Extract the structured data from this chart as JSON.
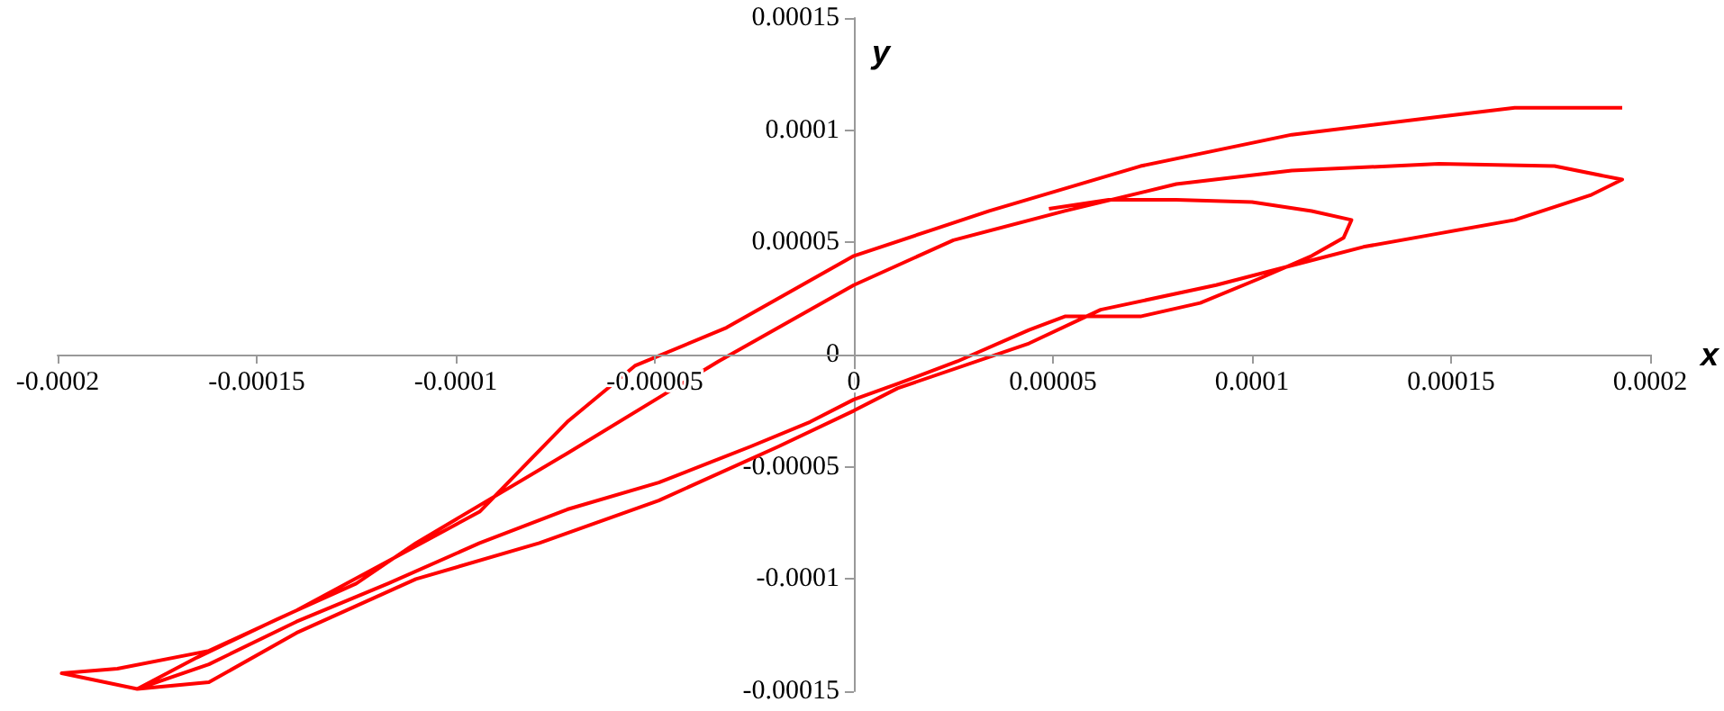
{
  "chart_data": {
    "type": "line",
    "xlabel": "x",
    "ylabel": "y",
    "xlim": [
      -0.0002,
      0.0002
    ],
    "ylim": [
      -0.00015,
      0.00015
    ],
    "xticks": [
      -0.0002,
      -0.00015,
      -0.0001,
      {
        "value": -5e-05,
        "label": "-0.00005"
      },
      0,
      {
        "value": 5e-05,
        "label": "0.00005"
      },
      0.0001,
      0.00015,
      0.0002
    ],
    "yticks": [
      -0.00015,
      -0.0001,
      {
        "value": -5e-05,
        "label": "-0.00005"
      },
      0,
      {
        "value": 5e-05,
        "label": "0.00005"
      },
      0.0001,
      0.00015
    ],
    "marker": "none",
    "line_style": "solid",
    "series": [
      {
        "color": "#ff0000",
        "x": [
          4.9e-05,
          6.4e-05,
          8.1e-05,
          0.0001,
          0.000115,
          0.000125,
          0.000123,
          0.000115,
          0.000102,
          8.7e-05,
          7.2e-05,
          5.3e-05,
          4.4e-05,
          2.6e-05,
          1.1e-05,
          0,
          -1.1e-05,
          -2.6e-05,
          -4.9e-05,
          -7.2e-05,
          -9.4e-05,
          -0.000117,
          -0.00014,
          -0.000162,
          -0.00018,
          -0.000165,
          -0.000145,
          -0.000125,
          -0.00011,
          -7.2e-05,
          -3.4e-05,
          0,
          2.5e-05,
          5.3e-05,
          8.1e-05,
          0.00011,
          0.000147,
          0.000176,
          0.000193,
          0.000185,
          0.000166,
          0.000147,
          0.000128,
          0.000115,
          9.1e-05,
          6.2e-05,
          4.4e-05,
          1.1e-05,
          0,
          -1.9e-05,
          -4.9e-05,
          -7.9e-05,
          -0.00011,
          -0.00014,
          -0.000162,
          -0.00018,
          -0.000199,
          -0.000185,
          -0.000162,
          -0.00014,
          -0.000117,
          -9.4e-05,
          -7.2e-05,
          -5.5e-05,
          -3.2e-05,
          0,
          3.4e-05,
          7.2e-05,
          0.00011,
          0.000147,
          0.000166,
          0.000193
        ],
        "values": [
          6.5e-05,
          6.9e-05,
          6.9e-05,
          6.8e-05,
          6.4e-05,
          6e-05,
          5.2e-05,
          4.4e-05,
          3.4e-05,
          2.3e-05,
          1.7e-05,
          1.7e-05,
          1.1e-05,
          -3e-06,
          -1.3e-05,
          -2e-05,
          -3e-05,
          -4.1e-05,
          -5.7e-05,
          -6.9e-05,
          -8.4e-05,
          -0.000102,
          -0.000119,
          -0.000138,
          -0.000149,
          -0.000135,
          -0.000118,
          -0.000102,
          -8.4e-05,
          -4.4e-05,
          -3e-06,
          3.1e-05,
          5.1e-05,
          6.4e-05,
          7.6e-05,
          8.2e-05,
          8.5e-05,
          8.4e-05,
          7.8e-05,
          7.1e-05,
          6e-05,
          5.4e-05,
          4.8e-05,
          4.2e-05,
          3.1e-05,
          2e-05,
          5e-06,
          -1.5e-05,
          -2.5e-05,
          -4.1e-05,
          -6.5e-05,
          -8.4e-05,
          -0.0001,
          -0.000124,
          -0.000146,
          -0.000149,
          -0.000142,
          -0.00014,
          -0.000132,
          -0.000114,
          -9.2e-05,
          -7e-05,
          -3e-05,
          -5e-06,
          1.2e-05,
          4.4e-05,
          6.4e-05,
          8.4e-05,
          9.8e-05,
          0.000106,
          0.00011,
          0.00011
        ]
      }
    ]
  }
}
